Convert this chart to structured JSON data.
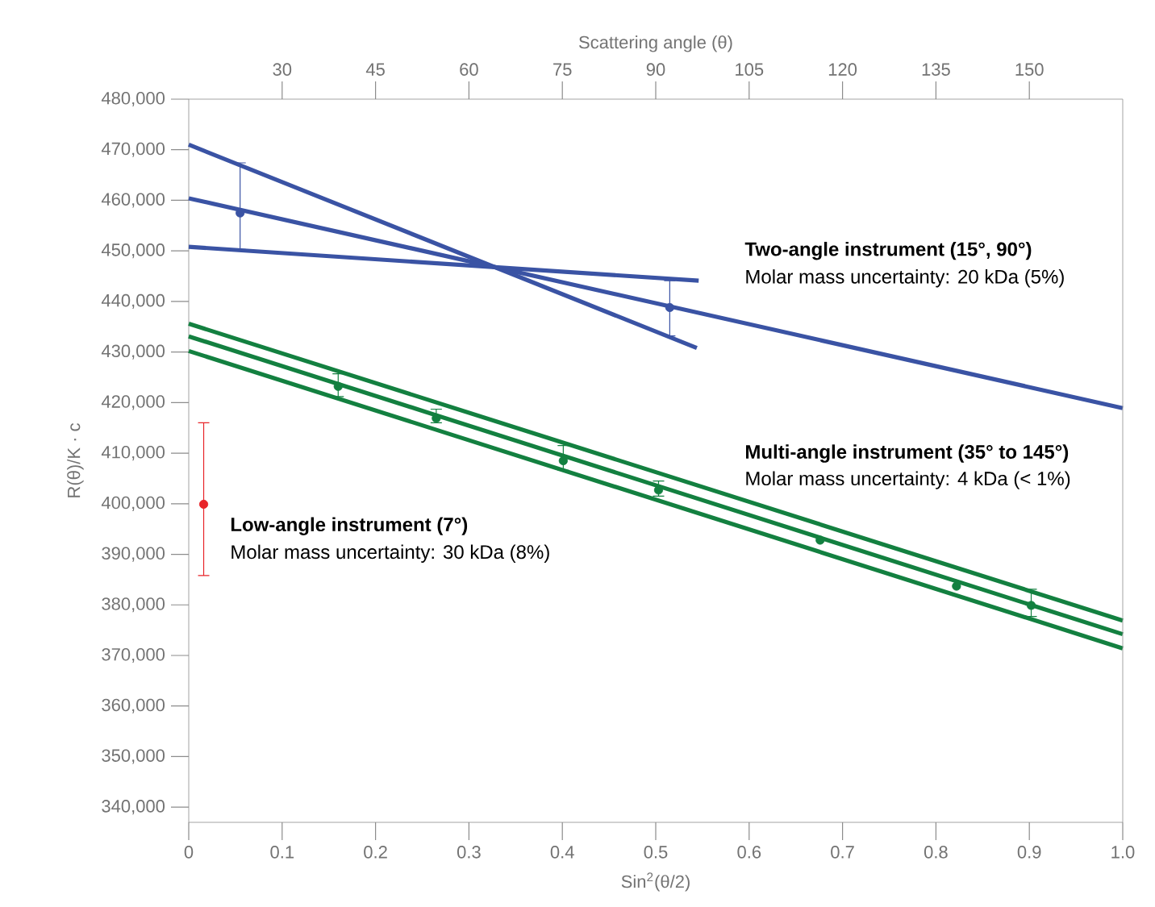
{
  "chart_data": {
    "type": "scatter",
    "xlabel": "Sin$^{2}$(θ/2)",
    "ylabel": "R(θ)/K · c",
    "x2label": "Scattering angle (θ)",
    "xlim": [
      0,
      1
    ],
    "ylim": [
      337000,
      480000
    ],
    "x2lim": [
      15,
      165
    ],
    "xticks": [
      0,
      0.1,
      0.2,
      0.3,
      0.4,
      0.5,
      0.6,
      0.7,
      0.8,
      0.9,
      {
        "value": 1,
        "label": "1.0"
      }
    ],
    "x2ticks": [
      30,
      45,
      60,
      75,
      90,
      105,
      120,
      135,
      150
    ],
    "yticks": [
      {
        "value": 340000,
        "label": "340,000"
      },
      {
        "value": 350000,
        "label": "350,000"
      },
      {
        "value": 360000,
        "label": "360,000"
      },
      {
        "value": 370000,
        "label": "370,000"
      },
      {
        "value": 380000,
        "label": "380,000"
      },
      {
        "value": 390000,
        "label": "390,000"
      },
      {
        "value": 400000,
        "label": "400,000"
      },
      {
        "value": 410000,
        "label": "410,000"
      },
      {
        "value": 420000,
        "label": "420,000"
      },
      {
        "value": 430000,
        "label": "430,000"
      },
      {
        "value": 440000,
        "label": "440,000"
      },
      {
        "value": 450000,
        "label": "450,000"
      },
      {
        "value": 460000,
        "label": "460,000"
      },
      {
        "value": 470000,
        "label": "470,000"
      },
      {
        "value": 480000,
        "label": "480,000"
      }
    ],
    "grid": false,
    "series": [
      {
        "type": "line",
        "marker": "none",
        "color": "#3a53a4",
        "x": [
          0,
          0.544
        ],
        "values": [
          471000,
          430800
        ]
      },
      {
        "type": "line",
        "marker": "none",
        "color": "#3a53a4",
        "x": [
          0,
          1
        ],
        "values": [
          460400,
          418900
        ]
      },
      {
        "type": "line",
        "marker": "none",
        "color": "#3a53a4",
        "x": [
          0,
          0.546
        ],
        "values": [
          450800,
          444100
        ]
      },
      {
        "marker": "circle",
        "color": "#3a53a4",
        "x": [
          0.055,
          0.515
        ],
        "values": [
          457500,
          438800
        ],
        "errors": [
          [
            450300,
            467400
          ],
          [
            433200,
            444100
          ]
        ]
      },
      {
        "type": "line",
        "marker": "none",
        "color": "#138040",
        "x": [
          0,
          1
        ],
        "values": [
          435600,
          376900
        ]
      },
      {
        "type": "line",
        "marker": "none",
        "color": "#138040",
        "x": [
          0,
          1
        ],
        "values": [
          433100,
          374200
        ]
      },
      {
        "type": "line",
        "marker": "none",
        "color": "#138040",
        "x": [
          0,
          1
        ],
        "values": [
          430200,
          371400
        ]
      },
      {
        "marker": "circle",
        "color": "#138040",
        "x": [
          0.16,
          0.265,
          0.401,
          0.503,
          0.676,
          0.822,
          0.902
        ],
        "values": [
          423200,
          416900,
          408500,
          402700,
          392800,
          383700,
          379900
        ],
        "errors": [
          [
            421200,
            425700
          ],
          [
            416000,
            418700
          ],
          [
            406600,
            411500
          ],
          [
            401500,
            404500
          ],
          null,
          null,
          [
            377700,
            383100
          ]
        ]
      },
      {
        "marker": "circle",
        "color": "#e8252a",
        "x": [
          0.016
        ],
        "values": [
          399900
        ],
        "errors": [
          [
            385800,
            416000
          ]
        ]
      }
    ],
    "annotations": [
      "Two-angle instrument (15°, 90°)",
      "Molar mass uncertainty: 20 kDa (5%)",
      "Multi-angle instrument (35° to 145°)",
      "Molar mass uncertainty: 4 kDa (< 1%)",
      "Low-angle instrument (7°)",
      "Molar mass uncertainty: 30 kDa (8%)"
    ]
  }
}
